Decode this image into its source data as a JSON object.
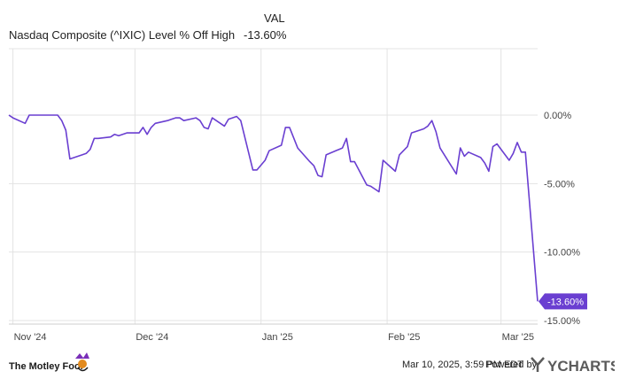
{
  "header": {
    "val_label": "VAL",
    "series_name": "Nasdaq Composite (^IXIC) Level % Off High",
    "series_value": "-13.60%"
  },
  "footer": {
    "timestamp": "Mar 10, 2025, 3:59 PM EDT",
    "powered_by": "Powered by",
    "brand_left": "The Motley Fool",
    "brand_right": "YCHARTS"
  },
  "colors": {
    "line": "#6a3fd1",
    "grid": "#e3e3e3",
    "label": "#444444",
    "badge": "#6a3fd1"
  },
  "chart_data": {
    "type": "line",
    "title": "",
    "x_ticks": [
      "Nov '24",
      "Dec '24",
      "Jan '25",
      "Feb '25",
      "Mar '25"
    ],
    "y_ticks": [
      "0.00%",
      "-5.00%",
      "-10.00%",
      "-15.00%"
    ],
    "ylim": [
      -15,
      0
    ],
    "xlim": [
      "2024-10-31",
      "2025-03-10"
    ],
    "end_label": "-13.60%",
    "series": [
      {
        "values": [
          [
            "2024-10-31",
            0
          ],
          [
            "2024-11-01",
            -0.2
          ],
          [
            "2024-11-04",
            -0.6
          ],
          [
            "2024-11-05",
            0
          ],
          [
            "2024-11-06",
            0
          ],
          [
            "2024-11-07",
            0
          ],
          [
            "2024-11-08",
            0
          ],
          [
            "2024-11-11",
            0
          ],
          [
            "2024-11-12",
            0
          ],
          [
            "2024-11-13",
            -0.4
          ],
          [
            "2024-11-14",
            -1.1
          ],
          [
            "2024-11-15",
            -3.2
          ],
          [
            "2024-11-18",
            -2.9
          ],
          [
            "2024-11-19",
            -2.8
          ],
          [
            "2024-11-20",
            -2.5
          ],
          [
            "2024-11-21",
            -1.7
          ],
          [
            "2024-11-22",
            -1.7
          ],
          [
            "2024-11-25",
            -1.6
          ],
          [
            "2024-11-26",
            -1.4
          ],
          [
            "2024-11-27",
            -1.5
          ],
          [
            "2024-11-29",
            -1.3
          ],
          [
            "2024-12-02",
            -1.3
          ],
          [
            "2024-12-03",
            -0.9
          ],
          [
            "2024-12-04",
            -1.4
          ],
          [
            "2024-12-05",
            -0.9
          ],
          [
            "2024-12-06",
            -0.6
          ],
          [
            "2024-12-09",
            -0.4
          ],
          [
            "2024-12-10",
            -0.3
          ],
          [
            "2024-12-11",
            -0.2
          ],
          [
            "2024-12-12",
            -0.2
          ],
          [
            "2024-12-13",
            -0.4
          ],
          [
            "2024-12-16",
            -0.2
          ],
          [
            "2024-12-17",
            -0.4
          ],
          [
            "2024-12-18",
            -0.9
          ],
          [
            "2024-12-19",
            -1.0
          ],
          [
            "2024-12-20",
            -0.2
          ],
          [
            "2024-12-23",
            -0.8
          ],
          [
            "2024-12-24",
            -0.3
          ],
          [
            "2024-12-26",
            -0.1
          ],
          [
            "2024-12-27",
            -0.4
          ],
          [
            "2024-12-30",
            -4.0
          ],
          [
            "2024-12-31",
            -4.0
          ],
          [
            "2025-01-02",
            -3.3
          ],
          [
            "2025-01-03",
            -2.6
          ],
          [
            "2025-01-06",
            -2.2
          ],
          [
            "2025-01-07",
            -0.9
          ],
          [
            "2025-01-08",
            -0.9
          ],
          [
            "2025-01-10",
            -2.4
          ],
          [
            "2025-01-13",
            -3.4
          ],
          [
            "2025-01-14",
            -3.7
          ],
          [
            "2025-01-15",
            -4.4
          ],
          [
            "2025-01-16",
            -4.5
          ],
          [
            "2025-01-17",
            -2.9
          ],
          [
            "2025-01-21",
            -2.4
          ],
          [
            "2025-01-22",
            -1.7
          ],
          [
            "2025-01-23",
            -3.4
          ],
          [
            "2025-01-24",
            -3.4
          ],
          [
            "2025-01-27",
            -5.1
          ],
          [
            "2025-01-28",
            -5.2
          ],
          [
            "2025-01-29",
            -5.4
          ],
          [
            "2025-01-30",
            -5.6
          ],
          [
            "2025-01-31",
            -3.3
          ],
          [
            "2025-02-03",
            -4.1
          ],
          [
            "2025-02-04",
            -2.9
          ],
          [
            "2025-02-05",
            -2.6
          ],
          [
            "2025-02-06",
            -2.3
          ],
          [
            "2025-02-07",
            -1.3
          ],
          [
            "2025-02-10",
            -1.0
          ],
          [
            "2025-02-11",
            -0.8
          ],
          [
            "2025-02-12",
            -0.4
          ],
          [
            "2025-02-13",
            -1.2
          ],
          [
            "2025-02-14",
            -2.4
          ],
          [
            "2025-02-18",
            -4.3
          ],
          [
            "2025-02-19",
            -2.4
          ],
          [
            "2025-02-20",
            -3.0
          ],
          [
            "2025-02-21",
            -2.7
          ],
          [
            "2025-02-24",
            -3.1
          ],
          [
            "2025-02-25",
            -3.5
          ],
          [
            "2025-02-26",
            -4.1
          ],
          [
            "2025-02-27",
            -2.3
          ],
          [
            "2025-02-28",
            -2.1
          ],
          [
            "2025-03-03",
            -3.3
          ],
          [
            "2025-03-04",
            -2.8
          ],
          [
            "2025-03-05",
            -2.0
          ],
          [
            "2025-03-06",
            -2.7
          ],
          [
            "2025-03-07",
            -2.7
          ],
          [
            "2025-03-10",
            -13.6
          ]
        ]
      }
    ]
  }
}
